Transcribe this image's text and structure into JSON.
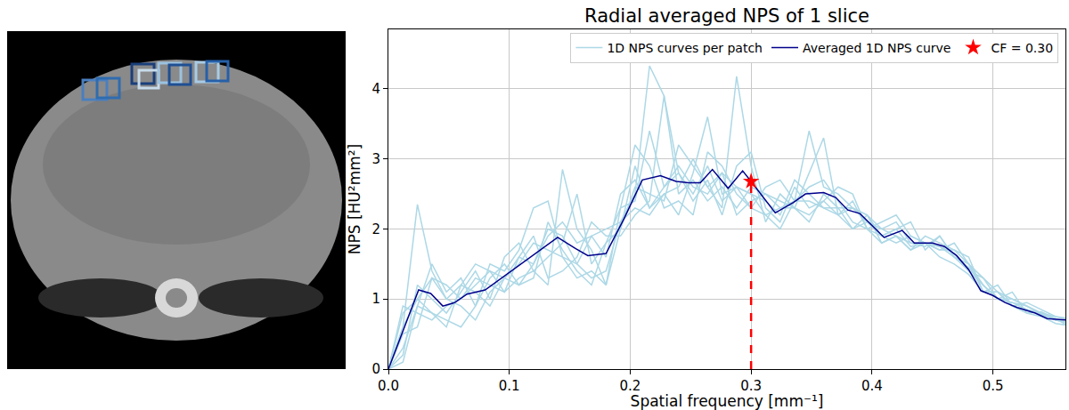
{
  "chart_data": {
    "type": "line",
    "title": "Radial averaged NPS of 1 slice",
    "x_label": "Spatial frequency [mm⁻¹]",
    "y_label": "NPS [HU²mm²]",
    "xlim": [
      0,
      0.56
    ],
    "ylim": [
      0,
      4.85
    ],
    "xticks": [
      {
        "value": 0,
        "label": "0.0"
      },
      {
        "value": 0.1,
        "label": "0.1"
      },
      {
        "value": 0.2,
        "label": "0.2"
      },
      {
        "value": 0.3,
        "label": "0.3"
      },
      {
        "value": 0.4,
        "label": "0.4"
      },
      {
        "value": 0.5,
        "label": "0.5"
      }
    ],
    "yticks": [
      0,
      1,
      2,
      3,
      4
    ],
    "grid": true,
    "legend": "upper right",
    "patch_curves": {
      "name": "1D NPS curves per patch",
      "color": "#add8e6",
      "x": [
        0,
        0.012,
        0.024,
        0.036,
        0.048,
        0.06,
        0.072,
        0.084,
        0.096,
        0.108,
        0.12,
        0.132,
        0.144,
        0.156,
        0.168,
        0.18,
        0.192,
        0.204,
        0.216,
        0.228,
        0.24,
        0.252,
        0.264,
        0.276,
        0.288,
        0.3,
        0.312,
        0.324,
        0.336,
        0.348,
        0.36,
        0.372,
        0.384,
        0.396,
        0.408,
        0.42,
        0.432,
        0.444,
        0.456,
        0.468,
        0.48,
        0.492,
        0.504,
        0.516,
        0.528,
        0.54,
        0.552,
        0.564
      ],
      "curves": [
        [
          0,
          0.6,
          2.35,
          1.4,
          1.0,
          0.9,
          0.7,
          1.1,
          1.3,
          1.2,
          1.5,
          2.0,
          1.9,
          1.5,
          1.3,
          1.4,
          2.1,
          2.5,
          4.33,
          3.9,
          2.8,
          2.5,
          2.9,
          2.4,
          2.6,
          2.5,
          2.2,
          2.0,
          2.4,
          2.6,
          2.7,
          2.4,
          2.1,
          2.0,
          1.8,
          1.9,
          1.7,
          1.9,
          1.8,
          1.7,
          1.5,
          1.2,
          1.0,
          0.95,
          0.9,
          0.78,
          0.7,
          0.66
        ],
        [
          0,
          0.3,
          0.9,
          0.8,
          0.6,
          1.2,
          1.5,
          1.4,
          1.1,
          1.3,
          1.4,
          1.2,
          2.85,
          2.0,
          1.7,
          1.2,
          2.0,
          2.9,
          2.3,
          2.5,
          2.6,
          3.0,
          2.6,
          2.3,
          4.18,
          2.9,
          2.1,
          2.5,
          2.3,
          2.8,
          3.3,
          2.2,
          2.0,
          2.1,
          2.0,
          1.9,
          1.7,
          1.8,
          1.6,
          1.5,
          1.35,
          1.1,
          1.1,
          0.9,
          0.95,
          0.85,
          0.75,
          0.7
        ],
        [
          0,
          0.8,
          1.0,
          0.8,
          0.7,
          0.6,
          0.9,
          1.5,
          1.4,
          1.7,
          2.3,
          2.4,
          1.6,
          1.3,
          1.4,
          1.2,
          2.3,
          3.2,
          2.9,
          2.3,
          2.4,
          2.2,
          3.1,
          2.9,
          2.5,
          2.3,
          2.6,
          2.7,
          2.4,
          3.4,
          2.6,
          2.5,
          2.3,
          2.2,
          1.9,
          2.0,
          2.1,
          1.7,
          1.9,
          1.6,
          1.4,
          1.3,
          1.0,
          1.1,
          0.8,
          0.75,
          0.65,
          0.62
        ],
        [
          0,
          0.2,
          1.2,
          1.0,
          0.8,
          1.1,
          1.4,
          1.0,
          1.6,
          1.8,
          1.4,
          1.6,
          1.8,
          2.5,
          1.5,
          1.8,
          2.3,
          2.4,
          3.4,
          2.6,
          2.8,
          2.4,
          2.7,
          2.2,
          2.9,
          3.1,
          2.3,
          2.1,
          2.6,
          2.3,
          2.4,
          2.6,
          2.5,
          2.0,
          2.1,
          2.2,
          1.9,
          1.8,
          1.7,
          1.7,
          1.6,
          1.1,
          1.2,
          0.9,
          0.85,
          0.8,
          0.75,
          0.72
        ],
        [
          0,
          0.5,
          0.6,
          1.3,
          1.2,
          1.0,
          1.3,
          1.2,
          1.1,
          1.6,
          1.9,
          1.3,
          1.4,
          1.6,
          2.1,
          1.9,
          1.9,
          2.2,
          2.4,
          3.9,
          2.5,
          2.7,
          2.4,
          2.6,
          2.3,
          2.6,
          2.5,
          2.3,
          2.3,
          2.2,
          2.4,
          2.2,
          2.3,
          2.2,
          1.8,
          1.9,
          1.8,
          1.75,
          1.9,
          1.6,
          1.45,
          1.2,
          1.0,
          1.0,
          0.9,
          0.8,
          0.7,
          0.7
        ],
        [
          0,
          0.1,
          0.9,
          1.5,
          1.1,
          1.3,
          0.9,
          1.3,
          1.5,
          1.2,
          1.3,
          2.1,
          1.7,
          1.4,
          1.2,
          1.8,
          2.0,
          2.6,
          2.5,
          2.4,
          3.2,
          2.9,
          2.6,
          2.8,
          2.2,
          2.4,
          2.5,
          2.4,
          2.3,
          2.1,
          2.5,
          2.3,
          2.0,
          2.2,
          2.0,
          2.1,
          1.8,
          1.8,
          1.7,
          1.8,
          1.5,
          1.3,
          1.1,
          0.9,
          0.8,
          0.82,
          0.72,
          0.6
        ],
        [
          0,
          0.9,
          0.8,
          0.7,
          0.9,
          1.0,
          1.2,
          1.4,
          1.3,
          1.6,
          1.5,
          1.9,
          2.1,
          1.8,
          1.9,
          2.0,
          2.1,
          2.3,
          2.2,
          2.5,
          2.2,
          2.8,
          3.6,
          2.5,
          2.6,
          2.5,
          2.4,
          2.2,
          2.7,
          2.5,
          2.3,
          2.3,
          2.3,
          2.1,
          1.9,
          2.0,
          1.75,
          1.8,
          1.75,
          1.6,
          1.5,
          1.1,
          1.1,
          1.0,
          0.9,
          0.8,
          0.7,
          0.66
        ],
        [
          0,
          0.6,
          1.0,
          1.3,
          1.0,
          1.2,
          1.1,
          0.9,
          1.3,
          1.5,
          1.8,
          1.7,
          1.6,
          1.5,
          1.9,
          1.6,
          2.5,
          2.7,
          2.3,
          2.6,
          2.9,
          2.6,
          2.5,
          2.8,
          2.6,
          2.3,
          2.2,
          2.3,
          2.4,
          2.4,
          2.3,
          2.2,
          2.4,
          2.0,
          1.9,
          1.8,
          1.9,
          1.8,
          1.75,
          1.65,
          1.4,
          1.2,
          1.0,
          0.95,
          0.85,
          0.78,
          0.7,
          0.64
        ]
      ]
    },
    "series": [
      {
        "name": "Averaged 1D NPS curve",
        "color": "#00008b",
        "x": [
          0,
          0.025,
          0.035,
          0.045,
          0.055,
          0.065,
          0.08,
          0.1,
          0.12,
          0.14,
          0.155,
          0.165,
          0.18,
          0.195,
          0.21,
          0.225,
          0.238,
          0.248,
          0.258,
          0.268,
          0.281,
          0.293,
          0.3,
          0.31,
          0.32,
          0.335,
          0.345,
          0.36,
          0.37,
          0.38,
          0.39,
          0.4,
          0.41,
          0.425,
          0.435,
          0.45,
          0.46,
          0.47,
          0.48,
          0.49,
          0.5,
          0.51,
          0.52,
          0.535,
          0.545,
          0.56
        ],
        "values": [
          0,
          1.13,
          1.08,
          0.9,
          0.95,
          1.07,
          1.13,
          1.38,
          1.62,
          1.88,
          1.72,
          1.62,
          1.65,
          2.15,
          2.7,
          2.76,
          2.68,
          2.66,
          2.66,
          2.85,
          2.58,
          2.83,
          2.68,
          2.45,
          2.23,
          2.38,
          2.5,
          2.52,
          2.45,
          2.27,
          2.22,
          2.05,
          1.88,
          1.98,
          1.8,
          1.8,
          1.75,
          1.62,
          1.42,
          1.12,
          1.05,
          0.95,
          0.88,
          0.8,
          0.72,
          0.7
        ]
      }
    ],
    "cutoff": {
      "name": "CF = 0.30",
      "x": 0.3,
      "y": 2.68,
      "color": "#ff0000",
      "marker": "star",
      "line_style": "dashed"
    }
  }
}
